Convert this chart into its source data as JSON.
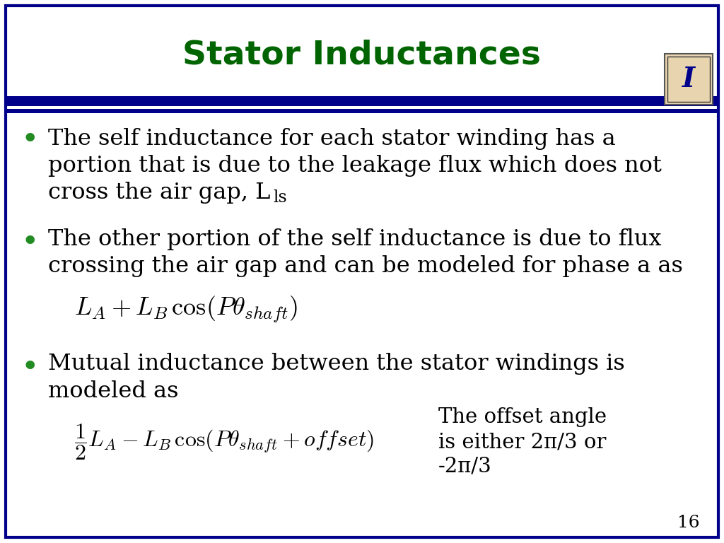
{
  "title": "Stator Inductances",
  "title_color": "#006400",
  "title_fontsize": 34,
  "bg_color": "#FFFFFF",
  "border_color": "#00008B",
  "bullet_color": "#228B22",
  "text_color": "#000000",
  "slide_number": "16",
  "bullet1_line1": "The self inductance for each stator winding has a",
  "bullet1_line2": "portion that is due to the leakage flux which does not",
  "bullet1_line3": "cross the air gap, L",
  "bullet1_sub": "ls",
  "bullet2_line1": "The other portion of the self inductance is due to flux",
  "bullet2_line2": "crossing the air gap and can be modeled for phase a as",
  "bullet3_line1": "Mutual inductance between the stator windings is",
  "bullet3_line2": "modeled as",
  "offset_note_line1": "The offset angle",
  "offset_note_line2": "is either 2π/3 or",
  "offset_note_line3": "-2π/3",
  "body_fontsize": 23,
  "formula_fontsize": 23,
  "note_fontsize": 21
}
